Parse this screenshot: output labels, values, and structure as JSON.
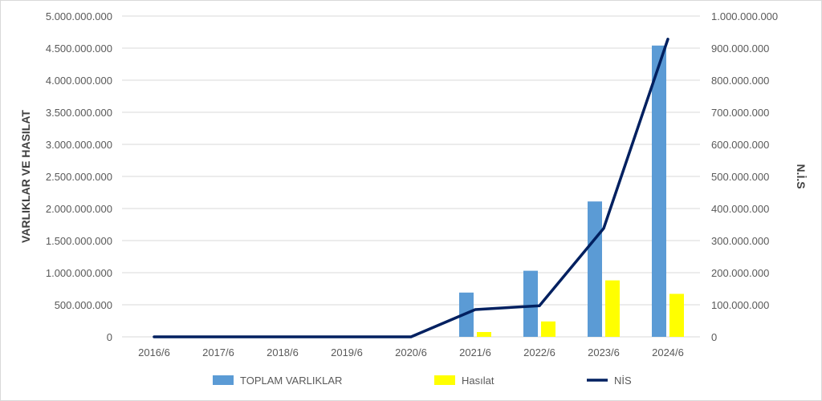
{
  "chart_data": {
    "type": "bar",
    "title": "",
    "xlabel": "",
    "ylabel": "VARLIKLAR VE HASILAT",
    "y2label": "N.İ.S",
    "categories": [
      "2016/6",
      "2017/6",
      "2018/6",
      "2019/6",
      "2020/6",
      "2021/6",
      "2022/6",
      "2023/6",
      "2024/6"
    ],
    "ylim": [
      0,
      5000000000
    ],
    "y2lim": [
      0,
      1000000000
    ],
    "yticks": [
      "0",
      "500.000.000",
      "1.000.000.000",
      "1.500.000.000",
      "2.000.000.000",
      "2.500.000.000",
      "3.000.000.000",
      "3.500.000.000",
      "4.000.000.000",
      "4.500.000.000",
      "5.000.000.000"
    ],
    "y2ticks": [
      "0",
      "100.000.000",
      "200.000.000",
      "300.000.000",
      "400.000.000",
      "500.000.000",
      "600.000.000",
      "700.000.000",
      "800.000.000",
      "900.000.000",
      "1.000.000.000"
    ],
    "grid": true,
    "legend_position": "bottom",
    "series": [
      {
        "name": "TOPLAM VARLIKLAR",
        "type": "bar",
        "axis": "left",
        "color": "#5b9bd5",
        "values": [
          0,
          0,
          0,
          0,
          0,
          690000000,
          1030000000,
          2110000000,
          4540000000
        ]
      },
      {
        "name": "Hasılat",
        "type": "bar",
        "axis": "left",
        "color": "#ffff00",
        "values": [
          0,
          0,
          0,
          0,
          0,
          75000000,
          240000000,
          880000000,
          670000000
        ]
      },
      {
        "name": "NİS",
        "type": "line",
        "axis": "right",
        "color": "#002060",
        "values": [
          0,
          0,
          0,
          0,
          0,
          85000000,
          97000000,
          338000000,
          928000000
        ]
      }
    ]
  }
}
